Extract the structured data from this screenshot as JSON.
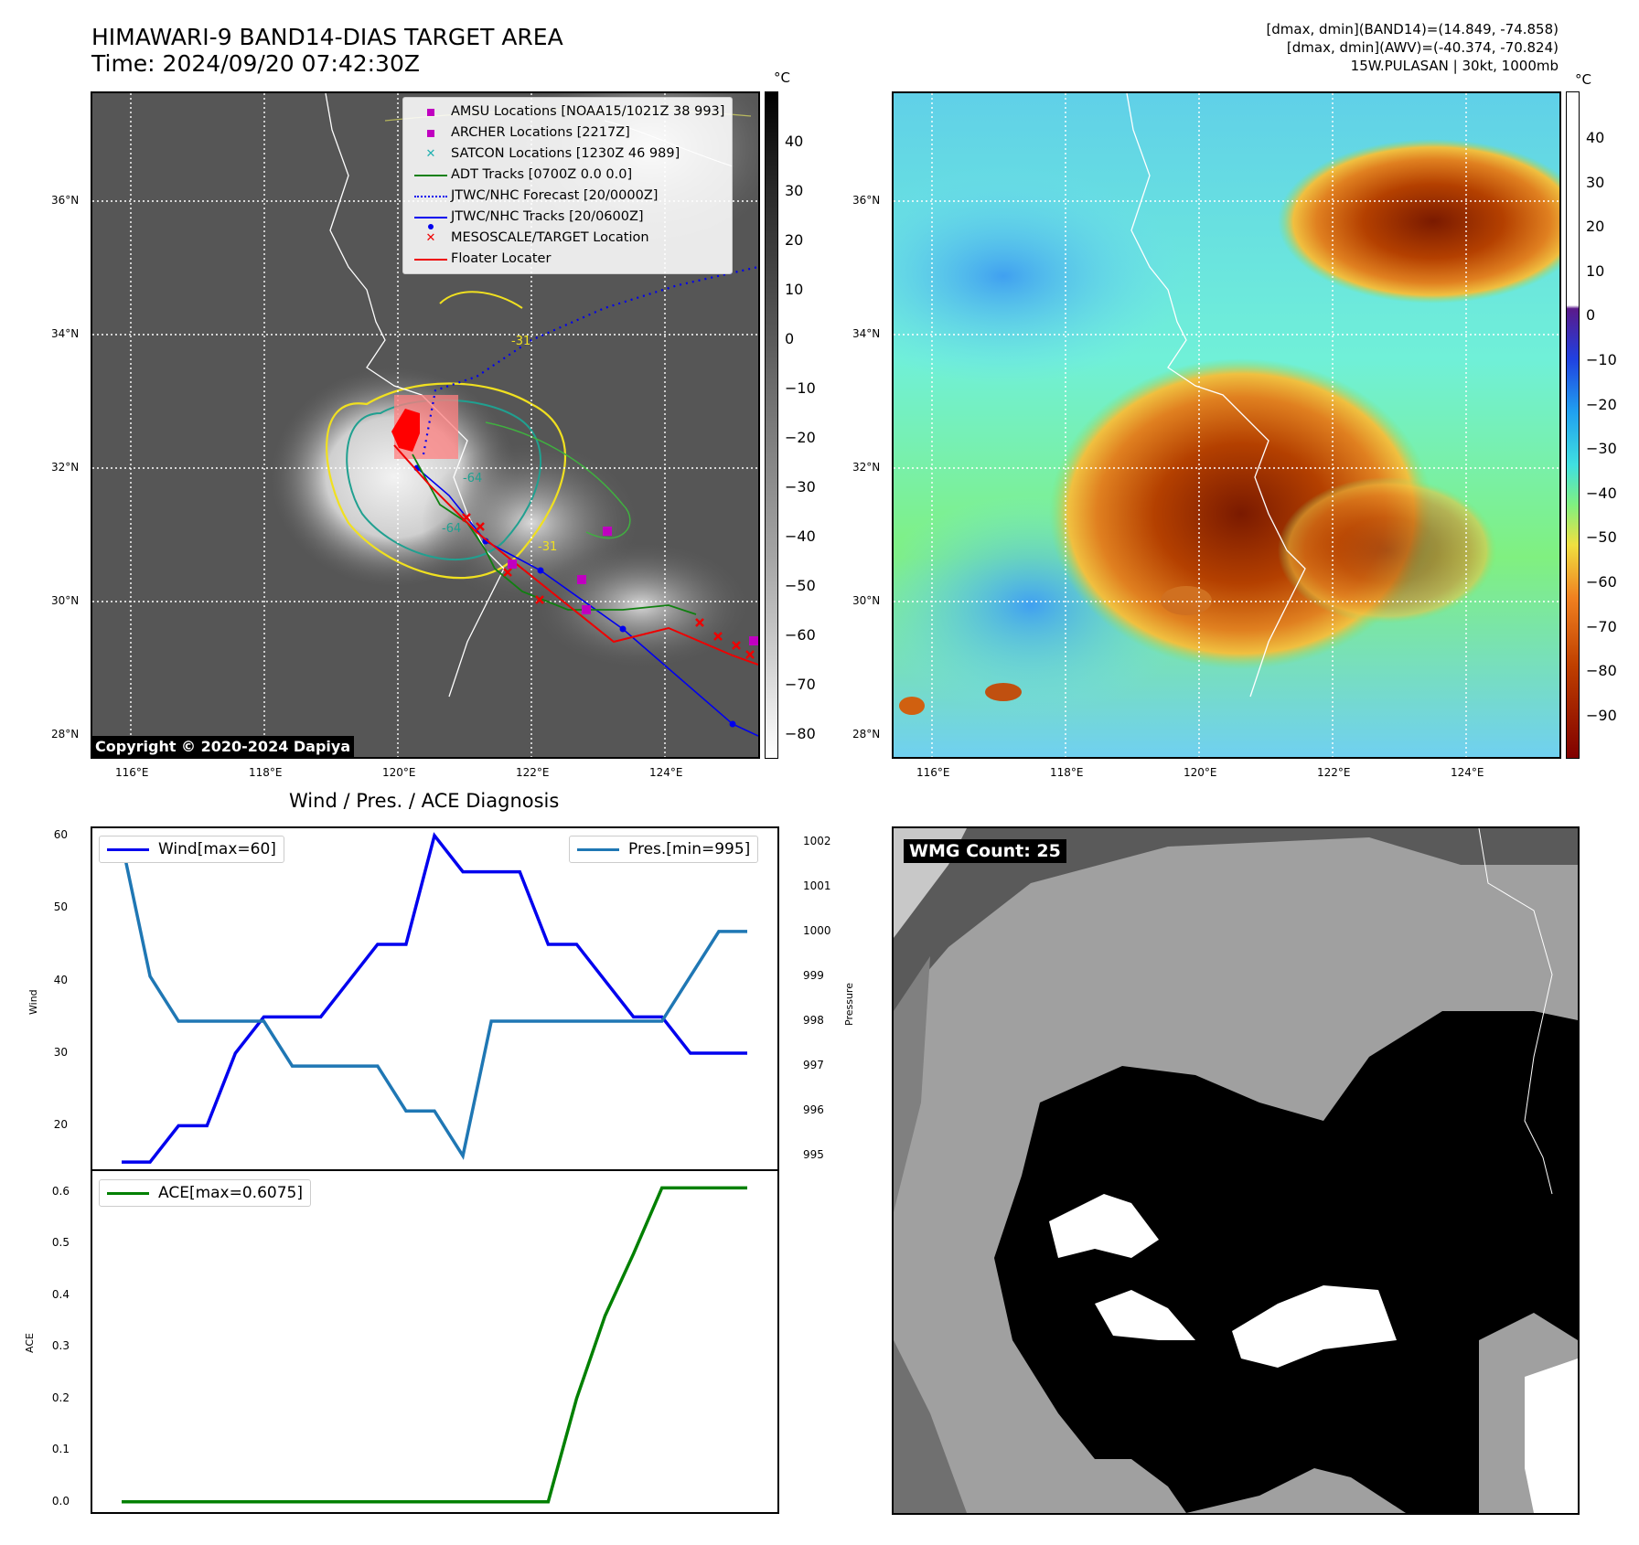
{
  "header": {
    "title_line1": "HIMAWARI-9 BAND14-DIAS TARGET AREA",
    "title_line2": "Time: 2024/09/20 07:42:30Z",
    "info_line1": "[dmax, dmin](BAND14)=(14.849, -74.858)",
    "info_line2": "[dmax, dmin](AWV)=(-40.374, -70.824)",
    "info_line3": "15W.PULASAN | 30kt, 1000mb"
  },
  "map": {
    "lat_labels": [
      "36°N",
      "34°N",
      "32°N",
      "30°N",
      "28°N"
    ],
    "lon_labels": [
      "116°E",
      "118°E",
      "120°E",
      "122°E",
      "124°E"
    ],
    "copyright": "Copyright © 2020-2024 Dapiya",
    "contour_labels": [
      "-31",
      "-64",
      "-64",
      "-31"
    ]
  },
  "ir_colorbar": {
    "unit": "°C",
    "ticks": [
      "40",
      "30",
      "20",
      "10",
      "0",
      "−10",
      "−20",
      "−30",
      "−40",
      "−50",
      "−60",
      "−70",
      "−80"
    ]
  },
  "awv_colorbar": {
    "unit": "°C",
    "ticks": [
      "40",
      "30",
      "20",
      "10",
      "0",
      "−10",
      "−20",
      "−30",
      "−40",
      "−50",
      "−60",
      "−70",
      "−80",
      "−90"
    ]
  },
  "legend": {
    "items": [
      {
        "label": "AMSU Locations [NOAA15/1021Z 38 993]",
        "marker": "square",
        "color": "#c000c0"
      },
      {
        "label": "ARCHER Locations [2217Z]",
        "marker": "square",
        "color": "#c000c0"
      },
      {
        "label": "SATCON Locations [1230Z 46 989]",
        "marker": "x",
        "color": "#20b0b0"
      },
      {
        "label": "ADT Tracks [0700Z 0.0 0.0]",
        "marker": "line",
        "color": "#108010"
      },
      {
        "label": "JTWC/NHC Forecast [20/0000Z]",
        "marker": "dotted",
        "color": "#0000ee"
      },
      {
        "label": "JTWC/NHC Tracks [20/0600Z]",
        "marker": "line-dot",
        "color": "#0000ee"
      },
      {
        "label": "MESOSCALE/TARGET Location",
        "marker": "x",
        "color": "#ee0000"
      },
      {
        "label": "Floater Locater",
        "marker": "line",
        "color": "#ee0000"
      }
    ]
  },
  "diagnosis": {
    "title": "Wind / Pres. / ACE Diagnosis",
    "wind_legend": "Wind[max=60]",
    "pres_legend": "Pres.[min=995]",
    "ace_legend": "ACE[max=0.6075]",
    "wind_ylabel": "Wind",
    "pres_ylabel": "Pressure",
    "ace_ylabel": "ACE"
  },
  "wmg": {
    "label": "WMG Count: 25"
  },
  "colors": {
    "wind": "#0000ee",
    "pressure": "#1f77b4",
    "ace": "#008000"
  },
  "chart_data": [
    {
      "type": "line",
      "title": "Wind / Pres. / ACE Diagnosis",
      "ylabel": "Wind",
      "ylim": [
        14,
        61
      ],
      "series": [
        {
          "name": "Wind[max=60]",
          "values": [
            15,
            15,
            20,
            20,
            30,
            35,
            35,
            35,
            40,
            45,
            45,
            60,
            55,
            55,
            55,
            45,
            45,
            40,
            35,
            35,
            30,
            30,
            30
          ]
        }
      ],
      "y_ticks": [
        20,
        30,
        40,
        50,
        60
      ]
    },
    {
      "type": "line",
      "ylabel": "Pressure",
      "ylim": [
        994.7,
        1002.3
      ],
      "series": [
        {
          "name": "Pres.[min=995]",
          "values": [
            1002,
            999,
            998,
            998,
            998,
            998,
            997,
            997,
            997,
            997,
            996,
            996,
            995,
            998,
            998,
            998,
            998,
            998,
            998,
            998,
            999,
            1000,
            1000
          ]
        }
      ],
      "y_ticks": [
        995,
        996,
        997,
        998,
        999,
        1000,
        1001,
        1002
      ]
    },
    {
      "type": "line",
      "ylabel": "ACE",
      "ylim": [
        -0.02,
        0.64
      ],
      "series": [
        {
          "name": "ACE[max=0.6075]",
          "values": [
            0,
            0,
            0,
            0,
            0,
            0,
            0,
            0,
            0,
            0,
            0,
            0,
            0,
            0,
            0,
            0,
            0.2,
            0.36,
            0.48,
            0.6075,
            0.6075,
            0.6075,
            0.6075
          ]
        }
      ],
      "y_ticks": [
        0.0,
        0.1,
        0.2,
        0.3,
        0.4,
        0.5,
        0.6
      ]
    }
  ]
}
